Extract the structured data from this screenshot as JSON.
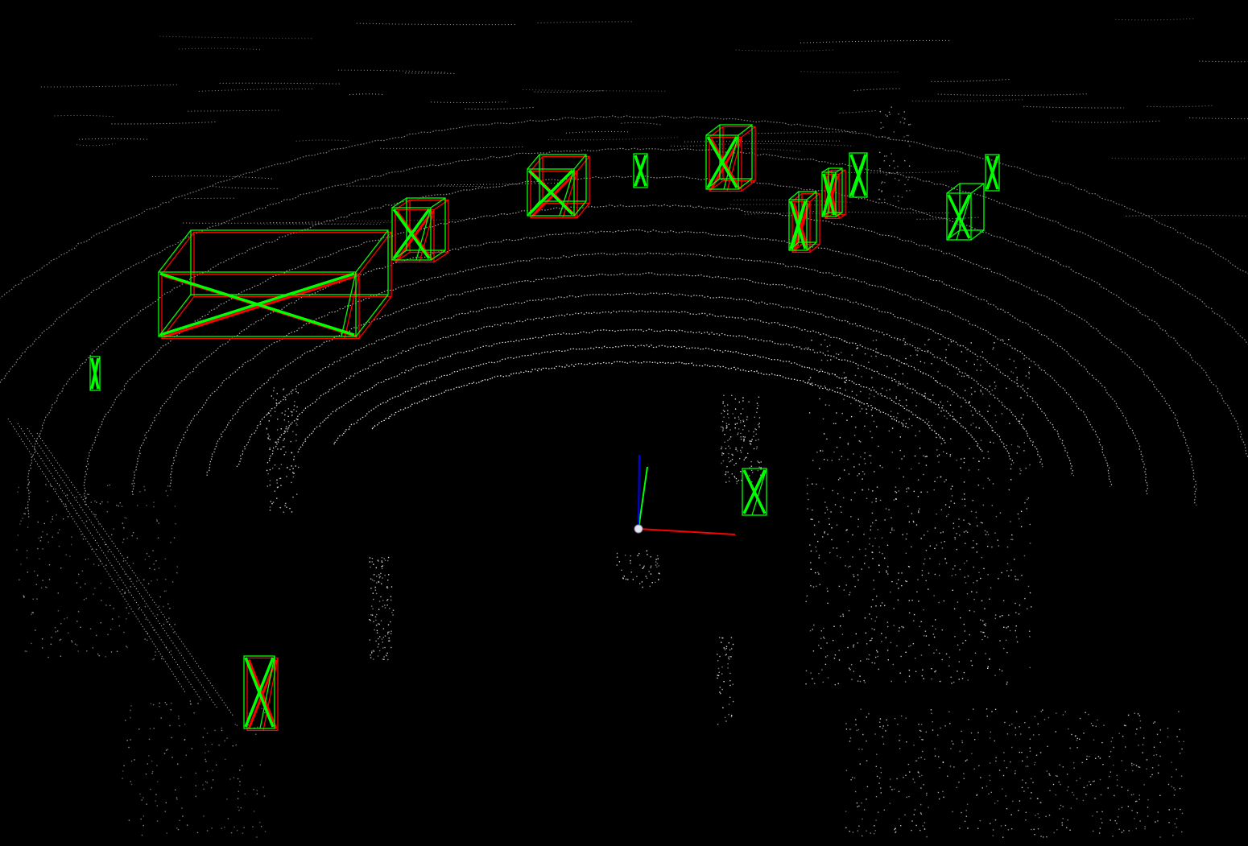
{
  "viewer": {
    "background": "#000000",
    "point_color": "#ffffff",
    "prediction_color": "#00ff00",
    "ground_truth_color": "#ff0000"
  },
  "axes": {
    "x_axis_color": "#ff0000",
    "y_axis_color": "#00ff00",
    "z_axis_color": "#0000ff",
    "origin_icon": "sphere-icon"
  },
  "scene": {
    "object_boxes": [
      {
        "kind": "large-vehicle",
        "has_prediction": true,
        "has_ground_truth": true
      },
      {
        "kind": "vehicle",
        "has_prediction": true,
        "has_ground_truth": true
      },
      {
        "kind": "vehicle",
        "has_prediction": true,
        "has_ground_truth": true
      },
      {
        "kind": "pedestrian",
        "has_prediction": true,
        "has_ground_truth": false
      },
      {
        "kind": "vehicle",
        "has_prediction": true,
        "has_ground_truth": true
      },
      {
        "kind": "pedestrian",
        "has_prediction": true,
        "has_ground_truth": true
      },
      {
        "kind": "pedestrian",
        "has_prediction": true,
        "has_ground_truth": true
      },
      {
        "kind": "pedestrian",
        "has_prediction": true,
        "has_ground_truth": false
      },
      {
        "kind": "pedestrian",
        "has_prediction": true,
        "has_ground_truth": false
      },
      {
        "kind": "pedestrian",
        "has_prediction": true,
        "has_ground_truth": false
      },
      {
        "kind": "pedestrian",
        "has_prediction": true,
        "has_ground_truth": false
      },
      {
        "kind": "pedestrian",
        "has_prediction": true,
        "has_ground_truth": false
      },
      {
        "kind": "pedestrian",
        "has_prediction": true,
        "has_ground_truth": true
      }
    ]
  }
}
